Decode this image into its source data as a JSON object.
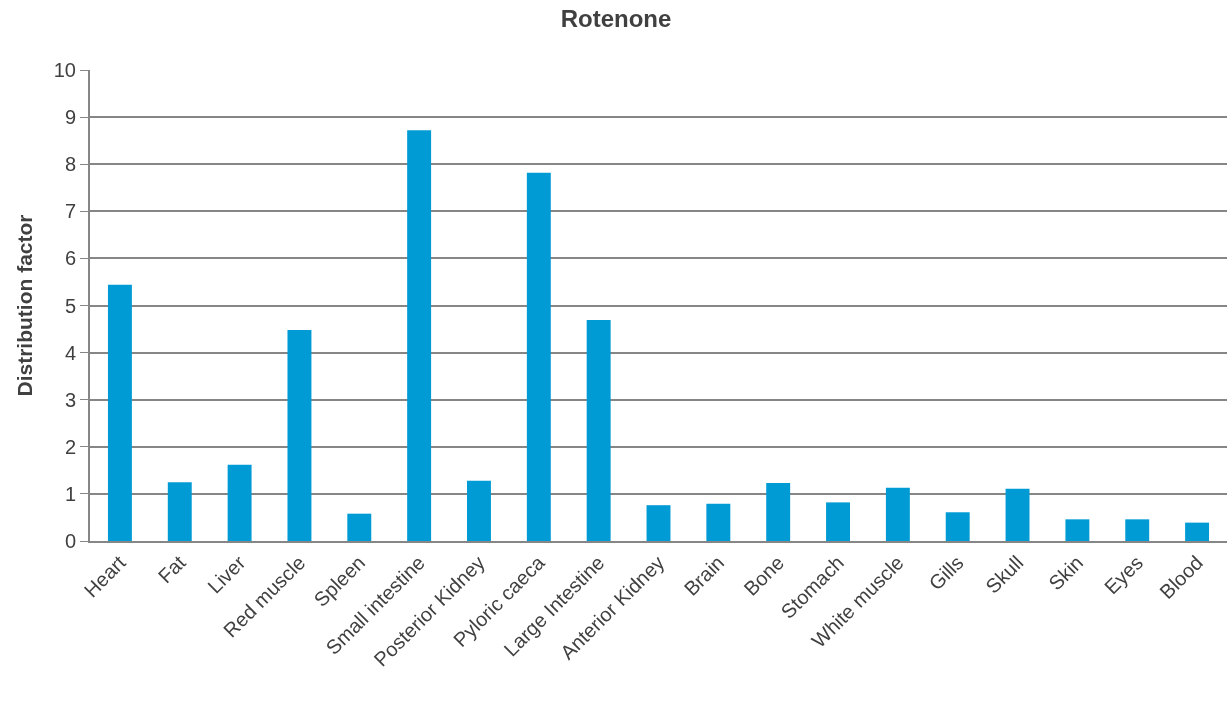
{
  "chart_data": {
    "type": "bar",
    "title": "Rotenone",
    "ylabel": "Distribution factor",
    "categories": [
      "Heart",
      "Fat",
      "Liver",
      "Red muscle",
      "Spleen",
      "Small intestine",
      "Posterior Kidney",
      "Pyloric caeca",
      "Large Intestine",
      "Anterior Kidney",
      "Brain",
      "Bone",
      "Stomach",
      "White muscle",
      "Gills",
      "Skull",
      "Skin",
      "Eyes",
      "Blood"
    ],
    "values": [
      5.44,
      1.25,
      1.62,
      4.48,
      0.58,
      8.72,
      1.28,
      7.82,
      4.69,
      0.76,
      0.79,
      1.23,
      0.82,
      1.13,
      0.61,
      1.11,
      0.46,
      0.46,
      0.39
    ],
    "color": "#009bd5",
    "ylim": [
      0,
      10
    ],
    "yticks": [
      0,
      1,
      2,
      3,
      4,
      5,
      6,
      7,
      8,
      9,
      10
    ],
    "grid": "y",
    "legend": false
  }
}
